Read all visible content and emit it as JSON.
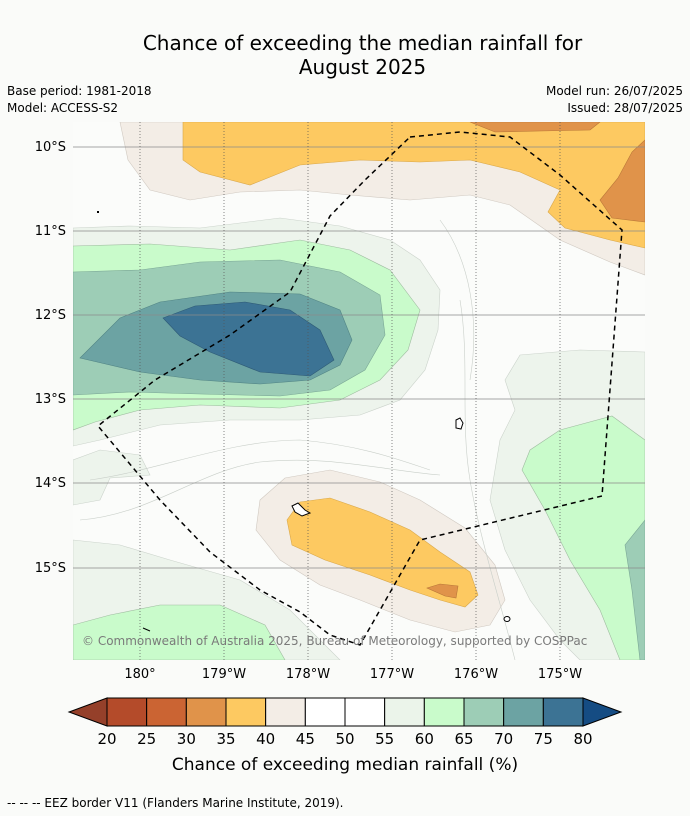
{
  "title": {
    "line1": "Chance of exceeding the median rainfall for",
    "line2": "August 2025"
  },
  "meta": {
    "base_period": "Base period: 1981-2018",
    "model": "Model: ACCESS-S2",
    "model_run": "Model run: 26/07/2025",
    "issued": "Issued: 28/07/2025"
  },
  "map": {
    "lat_labels": [
      "10°S",
      "11°S",
      "12°S",
      "13°S",
      "14°S",
      "15°S"
    ],
    "lon_labels": [
      "180°",
      "179°W",
      "178°W",
      "177°W",
      "176°W",
      "175°W"
    ],
    "copyright": "© Commonwealth of Australia 2025, Bureau of Meteorology, supported by COSPPac"
  },
  "colorbar": {
    "ticks": [
      "20",
      "25",
      "30",
      "35",
      "40",
      "45",
      "50",
      "55",
      "60",
      "65",
      "70",
      "75",
      "80"
    ],
    "colors": [
      "#b44b2a",
      "#cb6433",
      "#e0934a",
      "#fdc961",
      "#f3ede6",
      "#ffffff",
      "#ffffff",
      "#ebf4ea",
      "#c9fbcb",
      "#9dcdb6",
      "#6ca3a3",
      "#3c7394"
    ],
    "under_color": "#95402a",
    "over_color": "#154c83",
    "label": "Chance of exceeding median rainfall (%)"
  },
  "footer": "--  --  -- EEZ border V11 (Flanders Marine Institute, 2019)."
}
